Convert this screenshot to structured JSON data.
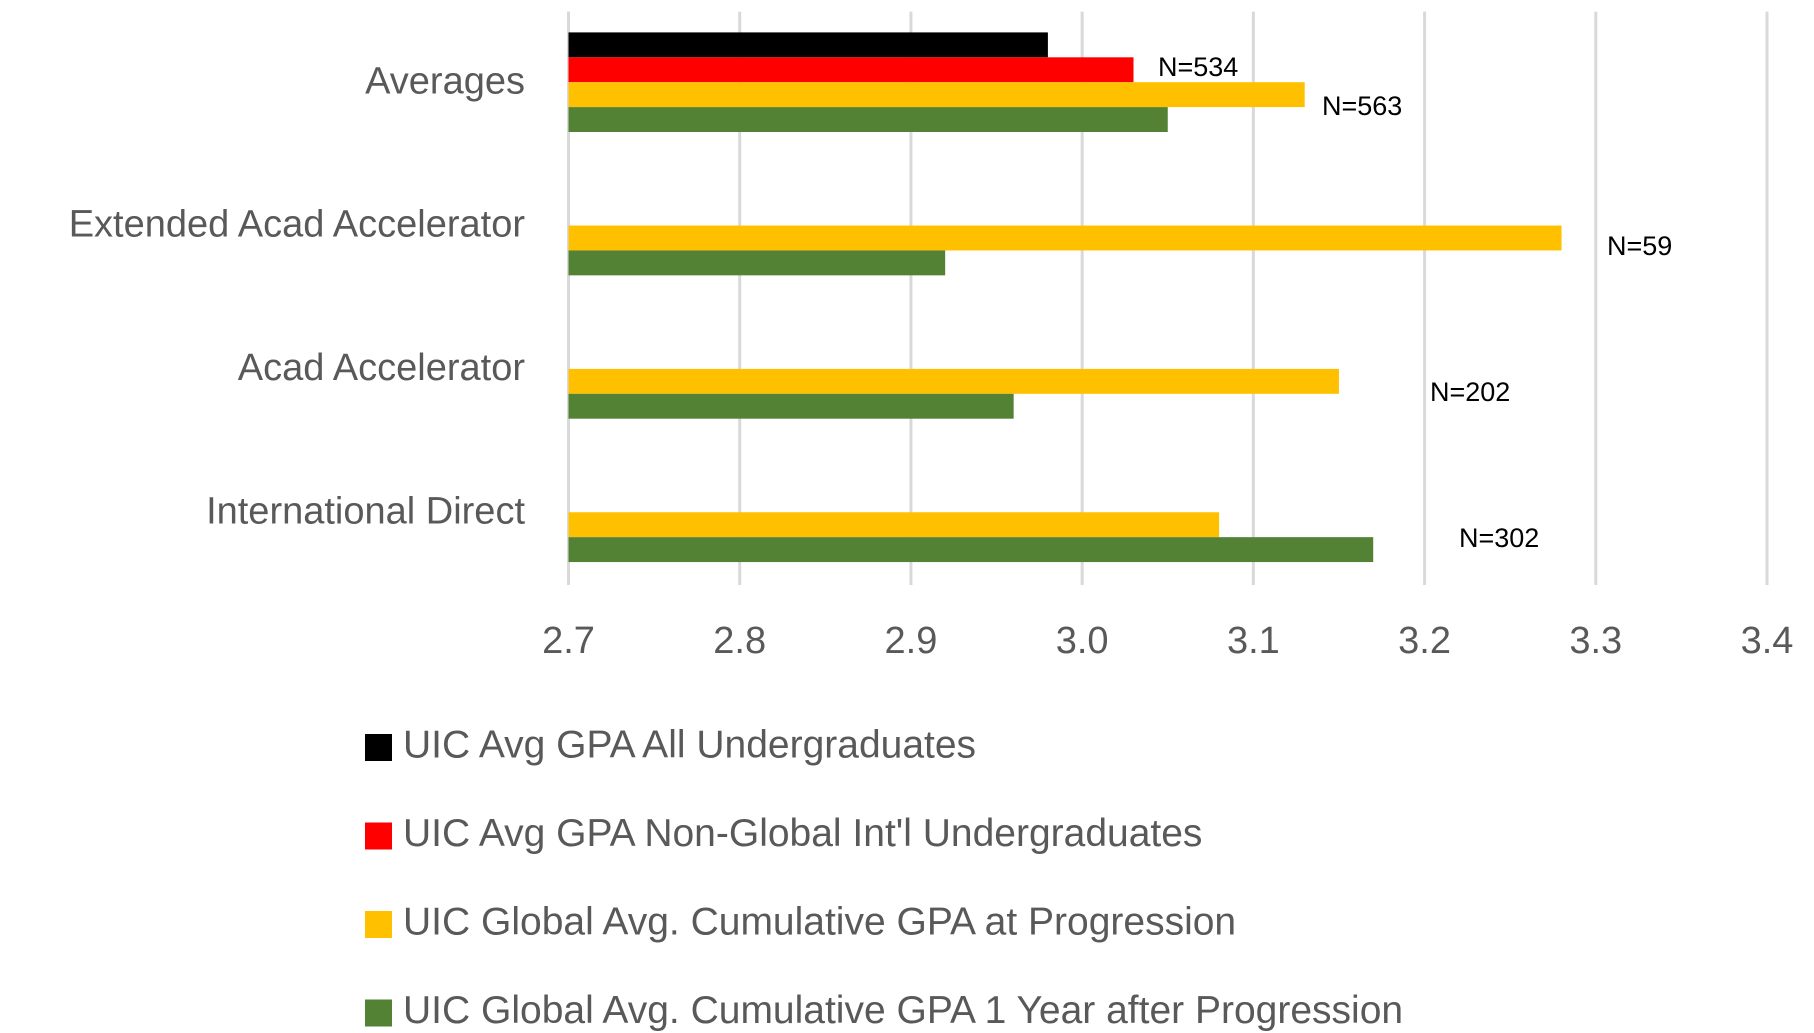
{
  "chart_data": {
    "type": "bar",
    "orientation": "horizontal",
    "categories": [
      "Averages",
      "Extended Acad Accelerator",
      "Acad Accelerator",
      "International Direct"
    ],
    "series": [
      {
        "name": "UIC Avg GPA All Undergraduates",
        "color": "#000000",
        "values": [
          2.98,
          null,
          null,
          null
        ]
      },
      {
        "name": "UIC Avg GPA Non-Global Int'l Undergraduates",
        "color": "#ff0000",
        "values": [
          3.03,
          null,
          null,
          null
        ]
      },
      {
        "name": "UIC Global Avg. Cumulative GPA at Progression",
        "color": "#ffc000",
        "values": [
          3.13,
          3.28,
          3.15,
          3.08
        ]
      },
      {
        "name": "UIC Global Avg. Cumulative GPA 1 Year after Progression",
        "color": "#548235",
        "values": [
          3.05,
          2.92,
          2.96,
          3.17
        ]
      }
    ],
    "annotations": [
      "N=534",
      "N=563",
      "N=59",
      "N=202",
      "N=302"
    ],
    "xlim": [
      2.7,
      3.4
    ],
    "xticks": [
      2.7,
      2.8,
      2.9,
      {
        "value": 3,
        "label": "3.0"
      },
      3.1,
      3.2,
      3.3,
      3.4
    ],
    "grid": true,
    "legend": "bottom"
  }
}
